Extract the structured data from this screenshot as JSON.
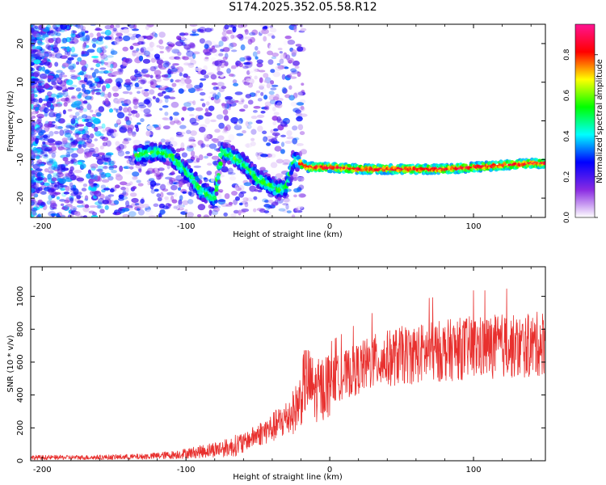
{
  "title": "S174.2025.352.05.58.R12",
  "chart_data": [
    {
      "id": "spectrogram",
      "type": "heatmap",
      "xlabel": "Height of straight line (km)",
      "ylabel": "Frequency (Hz)",
      "xlim": [
        -208,
        150
      ],
      "ylim": [
        -25,
        25
      ],
      "xticks": [
        "-200",
        "-100",
        "0",
        "100"
      ],
      "xtick_values": [
        -200,
        -100,
        0,
        100
      ],
      "yticks": [
        "-20",
        "-10",
        "0",
        "10",
        "20"
      ],
      "ytick_values": [
        -20,
        -10,
        0,
        10,
        20
      ],
      "colorbar": {
        "label": "Normalized spectral amplitude",
        "range": [
          0,
          0.95
        ],
        "ticks": [
          "0.0",
          "0.2",
          "0.4",
          "0.6",
          "0.8"
        ],
        "tick_values": [
          0.0,
          0.2,
          0.4,
          0.6,
          0.8
        ],
        "stops": [
          "#ffffff",
          "#8a2be2",
          "#0000ff",
          "#00ffff",
          "#00ff00",
          "#ffff00",
          "#ff0000",
          "#ff1493"
        ]
      },
      "ridge": {
        "x": [
          -135,
          -120,
          -110,
          -100,
          -95,
          -90,
          -80,
          -75,
          -68,
          -60,
          -50,
          -45,
          -40,
          -35,
          -30,
          -25,
          -20,
          -15,
          -10,
          0,
          20,
          40,
          60,
          80,
          100,
          120,
          140,
          150
        ],
        "y": [
          -9,
          -8,
          -9,
          -13,
          -15,
          -18,
          -20,
          -8,
          -9,
          -11,
          -15,
          -16,
          -17,
          -18,
          -17,
          -10,
          -11,
          -12,
          -12,
          -12,
          -12.5,
          -12.5,
          -12.5,
          -12.5,
          -12,
          -11.5,
          -11,
          -11
        ]
      }
    },
    {
      "id": "snr",
      "type": "line",
      "xlabel": "Height of straight line (km)",
      "ylabel": "SNR (10 * v/v)",
      "xlim": [
        -208,
        150
      ],
      "ylim": [
        0,
        1180
      ],
      "xticks": [
        "-200",
        "-100",
        "0",
        "100"
      ],
      "xtick_values": [
        -200,
        -100,
        0,
        100
      ],
      "yticks": [
        "0",
        "200",
        "400",
        "600",
        "800",
        "1000"
      ],
      "ytick_values": [
        0,
        200,
        400,
        600,
        800,
        1000
      ],
      "color": "#e8302e",
      "series": [
        {
          "name": "SNR",
          "x": [
            -208,
            -190,
            -170,
            -150,
            -130,
            -110,
            -100,
            -90,
            -80,
            -70,
            -60,
            -50,
            -40,
            -30,
            -25,
            -20,
            -17,
            -15,
            -10,
            -5,
            0,
            10,
            20,
            30,
            40,
            50,
            60,
            70,
            80,
            90,
            100,
            110,
            120,
            130,
            140,
            150
          ],
          "y": [
            20,
            20,
            20,
            22,
            25,
            35,
            45,
            55,
            70,
            80,
            110,
            160,
            200,
            260,
            300,
            380,
            500,
            480,
            420,
            440,
            480,
            520,
            560,
            600,
            620,
            640,
            650,
            660,
            670,
            680,
            690,
            690,
            700,
            690,
            700,
            720
          ]
        }
      ]
    }
  ]
}
